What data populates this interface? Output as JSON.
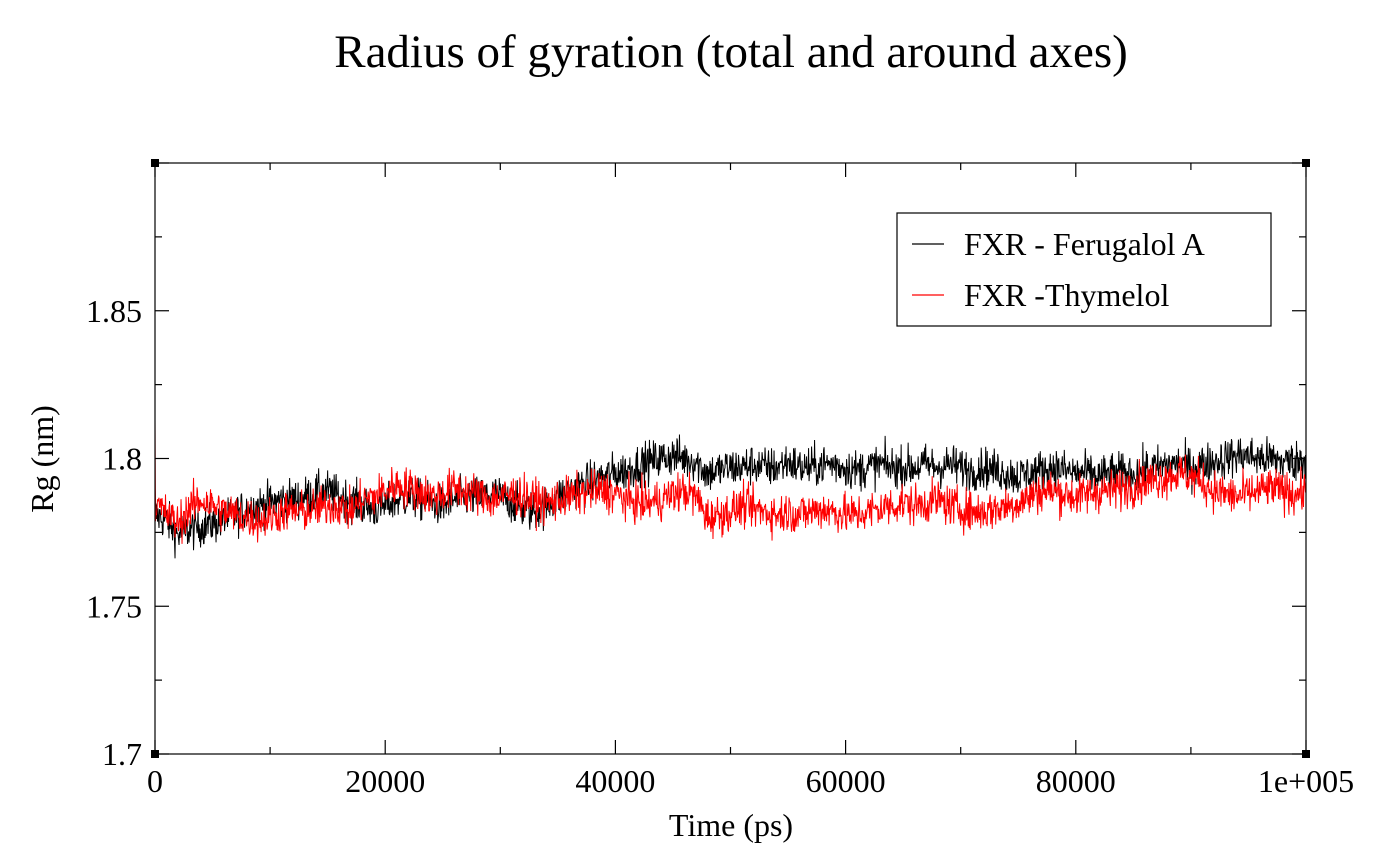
{
  "chart_data": {
    "type": "line",
    "title": "Radius of gyration (total and around axes)",
    "xlabel": "Time (ps)",
    "ylabel": "Rg (nm)",
    "xlim": [
      0,
      100000
    ],
    "ylim": [
      1.7,
      1.9
    ],
    "x_ticks": [
      0,
      20000,
      40000,
      60000,
      80000,
      100000
    ],
    "x_tick_labels": [
      "0",
      "20000",
      "40000",
      "60000",
      "80000",
      "1e+005"
    ],
    "y_ticks": [
      1.7,
      1.75,
      1.8,
      1.85
    ],
    "y_tick_labels": [
      "1.7",
      "1.75",
      "1.8",
      "1.85"
    ],
    "grid": false,
    "legend_position": "top-right",
    "x_step": 1000,
    "series": [
      {
        "name": "FXR - Ferugalol A",
        "color": "#000000",
        "noise": 0.007,
        "values": [
          1.781,
          1.779,
          1.774,
          1.776,
          1.777,
          1.778,
          1.779,
          1.781,
          1.783,
          1.784,
          1.785,
          1.786,
          1.786,
          1.787,
          1.788,
          1.789,
          1.787,
          1.786,
          1.784,
          1.783,
          1.784,
          1.786,
          1.787,
          1.786,
          1.785,
          1.784,
          1.786,
          1.787,
          1.787,
          1.788,
          1.787,
          1.785,
          1.783,
          1.782,
          1.784,
          1.787,
          1.789,
          1.791,
          1.792,
          1.794,
          1.795,
          1.796,
          1.798,
          1.799,
          1.8,
          1.801,
          1.8,
          1.799,
          1.795,
          1.796,
          1.797,
          1.797,
          1.798,
          1.797,
          1.797,
          1.799,
          1.797,
          1.797,
          1.798,
          1.798,
          1.797,
          1.796,
          1.797,
          1.798,
          1.797,
          1.797,
          1.797,
          1.798,
          1.797,
          1.798,
          1.797,
          1.796,
          1.797,
          1.796,
          1.795,
          1.794,
          1.795,
          1.796,
          1.797,
          1.796,
          1.795,
          1.795,
          1.794,
          1.795,
          1.795,
          1.795,
          1.796,
          1.797,
          1.798,
          1.798,
          1.797,
          1.798,
          1.799,
          1.8,
          1.801,
          1.801,
          1.8,
          1.8,
          1.799,
          1.799,
          1.8
        ]
      },
      {
        "name": "FXR -Thymelol",
        "color": "#ff0000",
        "noise": 0.007,
        "values": [
          1.785,
          1.781,
          1.778,
          1.783,
          1.786,
          1.784,
          1.782,
          1.781,
          1.78,
          1.779,
          1.78,
          1.782,
          1.782,
          1.782,
          1.783,
          1.784,
          1.784,
          1.782,
          1.786,
          1.787,
          1.789,
          1.791,
          1.79,
          1.789,
          1.787,
          1.788,
          1.79,
          1.789,
          1.788,
          1.786,
          1.787,
          1.788,
          1.787,
          1.786,
          1.785,
          1.786,
          1.787,
          1.788,
          1.789,
          1.789,
          1.788,
          1.786,
          1.785,
          1.785,
          1.786,
          1.788,
          1.789,
          1.787,
          1.78,
          1.781,
          1.782,
          1.784,
          1.783,
          1.782,
          1.781,
          1.782,
          1.781,
          1.782,
          1.783,
          1.782,
          1.781,
          1.781,
          1.782,
          1.783,
          1.784,
          1.785,
          1.784,
          1.785,
          1.786,
          1.784,
          1.783,
          1.782,
          1.782,
          1.783,
          1.784,
          1.785,
          1.787,
          1.789,
          1.789,
          1.788,
          1.787,
          1.788,
          1.789,
          1.789,
          1.79,
          1.791,
          1.792,
          1.793,
          1.794,
          1.795,
          1.794,
          1.792,
          1.789,
          1.788,
          1.787,
          1.788,
          1.789,
          1.79,
          1.789,
          1.788,
          1.789
        ]
      }
    ]
  }
}
